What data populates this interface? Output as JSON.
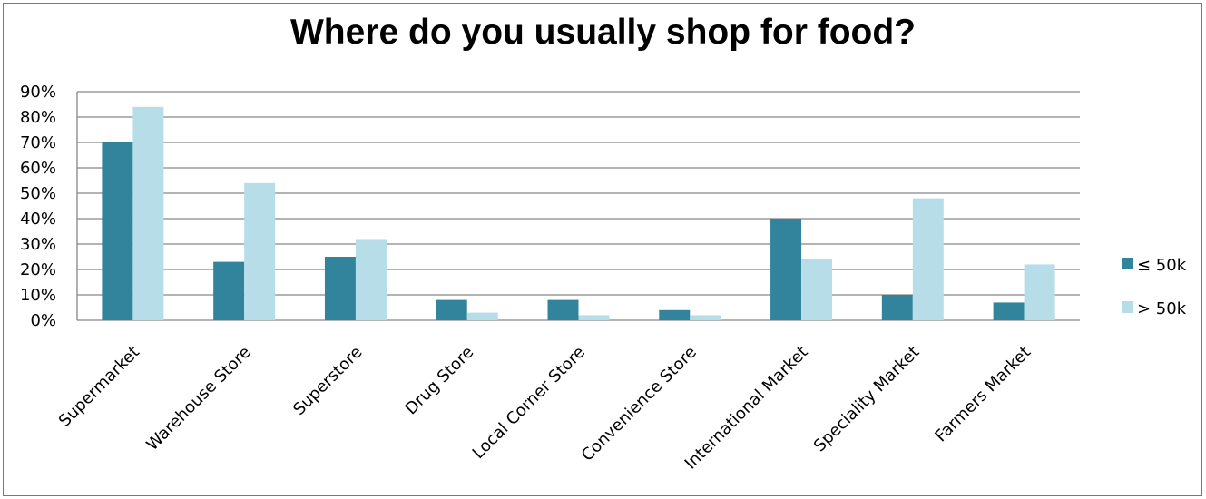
{
  "chart_data": {
    "type": "bar",
    "title": "Where do you usually shop for food?",
    "categories": [
      "Supermarket",
      "Warehouse Store",
      "Superstore",
      "Drug Store",
      "Local Corner Store",
      "Convenience Store",
      "International Market",
      "Speciality Market",
      "Farmers Market"
    ],
    "series": [
      {
        "name": "≤ 50k",
        "color": "#31849b",
        "values": [
          70,
          23,
          25,
          8,
          8,
          4,
          40,
          10,
          7
        ]
      },
      {
        "name": "> 50k",
        "color": "#b7dee8",
        "values": [
          84,
          54,
          32,
          3,
          2,
          2,
          24,
          48,
          22
        ]
      }
    ],
    "ylim": [
      0,
      90
    ],
    "yticks": [
      "0%",
      "10%",
      "20%",
      "30%",
      "40%",
      "50%",
      "60%",
      "70%",
      "80%",
      "90%"
    ],
    "grid": true,
    "legend_position": "right"
  }
}
